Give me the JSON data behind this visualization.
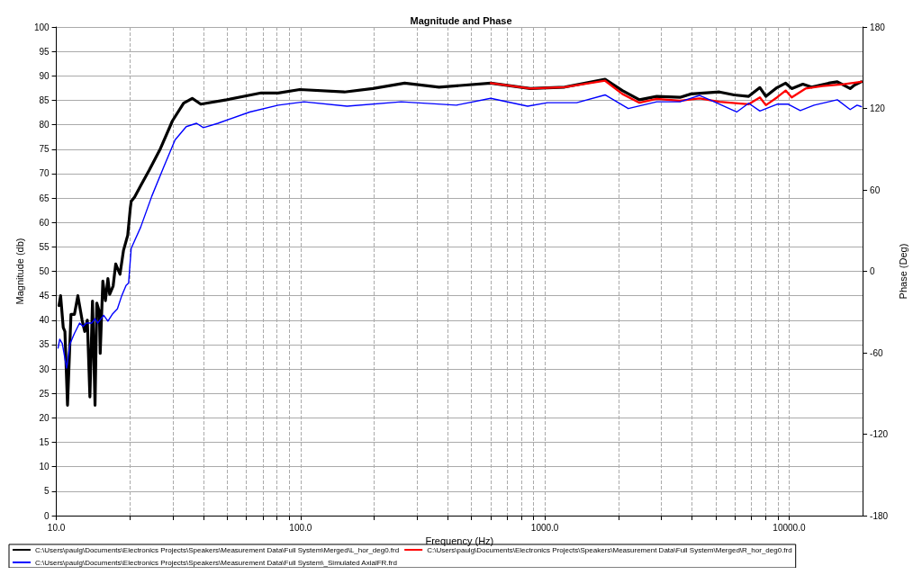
{
  "chart_data": {
    "type": "line",
    "title": "Magnitude and Phase",
    "xlabel": "Frequency (Hz)",
    "ylabel": "Magnitude (db)",
    "y2label": "Phase (Deg)",
    "log": "x",
    "grid": true,
    "legend": "bottom",
    "marker": "none",
    "line_style": "solid",
    "xlim": [
      10,
      20000
    ],
    "xticks": [
      {
        "value": 10,
        "label": "10.0"
      },
      {
        "value": 20,
        "label": null
      },
      {
        "value": 30,
        "label": null
      },
      {
        "value": 40,
        "label": null
      },
      {
        "value": 50,
        "label": null
      },
      {
        "value": 60,
        "label": null
      },
      {
        "value": 70,
        "label": null
      },
      {
        "value": 80,
        "label": null
      },
      {
        "value": 90,
        "label": null
      },
      {
        "value": 100,
        "label": "100.0"
      },
      {
        "value": 200,
        "label": null
      },
      {
        "value": 300,
        "label": null
      },
      {
        "value": 400,
        "label": null
      },
      {
        "value": 500,
        "label": null
      },
      {
        "value": 600,
        "label": null
      },
      {
        "value": 700,
        "label": null
      },
      {
        "value": 800,
        "label": null
      },
      {
        "value": 900,
        "label": null
      },
      {
        "value": 1000,
        "label": "1000.0"
      },
      {
        "value": 2000,
        "label": null
      },
      {
        "value": 3000,
        "label": null
      },
      {
        "value": 4000,
        "label": null
      },
      {
        "value": 5000,
        "label": null
      },
      {
        "value": 6000,
        "label": null
      },
      {
        "value": 7000,
        "label": null
      },
      {
        "value": 8000,
        "label": null
      },
      {
        "value": 9000,
        "label": null
      },
      {
        "value": 10000,
        "label": "10000.0"
      }
    ],
    "ylim": [
      0,
      100
    ],
    "yticks": [
      0,
      5,
      10,
      15,
      20,
      25,
      30,
      35,
      40,
      45,
      50,
      55,
      60,
      65,
      70,
      75,
      80,
      85,
      90,
      95,
      100
    ],
    "y2lim": [
      -180,
      180
    ],
    "y2ticks": [
      -180,
      -120,
      -60,
      0,
      60,
      120,
      180
    ],
    "series": [
      {
        "name": "C:\\Users\\paulg\\Documents\\Electronics Projects\\Speakers\\Measurement Data\\Full System\\Merged\\L_hor_deg0.frd",
        "color": "#000000",
        "x": [
          10.25,
          10.41,
          10.67,
          10.84,
          11.11,
          11.48,
          11.86,
          12.25,
          12.75,
          13.07,
          13.39,
          13.72,
          14.06,
          14.4,
          14.64,
          15.0,
          15.12,
          15.5,
          15.88,
          16.26,
          16.53,
          17.08,
          17.5,
          18.22,
          18.82,
          19.6,
          20.09,
          20.25,
          20.91,
          22.13,
          24.01,
          26.67,
          29.88,
          33.2,
          36.0,
          39.04,
          49.8,
          68.9,
          81.0,
          99.2,
          151.2,
          197.6,
          266.7,
          368.8,
          600.1,
          871.2,
          1205,
          1764,
          2075,
          2439,
          2870,
          3572,
          3968,
          5185,
          5953,
          6831,
          7592,
          8034,
          8926,
          9680,
          10246,
          11380,
          12350,
          14520,
          15750,
          17780,
          18520,
          19760
        ],
        "values": [
          43.0,
          45.0,
          38.5,
          37.7,
          22.6,
          41.2,
          41.2,
          45.0,
          40.0,
          37.7,
          40.0,
          24.3,
          43.9,
          22.6,
          43.5,
          41.7,
          33.2,
          48.0,
          44.0,
          48.5,
          45.3,
          47.0,
          51.5,
          49.4,
          54.2,
          57.4,
          63.0,
          64.3,
          65.2,
          67.5,
          70.7,
          75.1,
          80.8,
          84.4,
          85.4,
          84.2,
          85.1,
          86.5,
          86.5,
          87.2,
          86.7,
          87.4,
          88.5,
          87.7,
          88.5,
          87.4,
          87.7,
          89.3,
          87.0,
          85.1,
          85.8,
          85.6,
          86.3,
          86.7,
          86.1,
          85.8,
          87.6,
          85.8,
          87.6,
          88.5,
          87.4,
          88.3,
          87.7,
          88.5,
          88.8,
          87.4,
          88.1,
          88.8
        ]
      },
      {
        "name": "C:\\Users\\paulg\\Documents\\Electronics Projects\\Speakers\\Measurement Data\\Full System\\Merged\\R_hor_deg0.frd",
        "color": "#ff0000",
        "x": [
          600.1,
          871.2,
          1205,
          1764,
          2075,
          2439,
          2870,
          3572,
          4303,
          5185,
          6831,
          7592,
          8034,
          8926,
          9680,
          10246,
          11665,
          13720,
          16670,
          19760
        ],
        "values": [
          88.5,
          87.4,
          87.7,
          89.0,
          86.3,
          84.5,
          85.3,
          84.9,
          85.4,
          84.7,
          84.2,
          85.6,
          84.0,
          85.6,
          87.0,
          85.6,
          87.4,
          87.9,
          88.3,
          88.8
        ]
      },
      {
        "name": "C:\\Users\\paulg\\Documents\\Electronics Projects\\Speakers\\Measurement Data\\Full System\\_Simulated AxialFR.frd",
        "color": "#0000ff",
        "x": [
          10.16,
          10.33,
          10.58,
          11.02,
          11.38,
          11.86,
          12.45,
          12.86,
          13.28,
          13.94,
          14.4,
          14.76,
          15.62,
          16.26,
          16.94,
          17.78,
          18.52,
          19.29,
          19.76,
          20.25,
          22.13,
          24.6,
          27.55,
          30.62,
          34.02,
          37.49,
          40.0,
          45.9,
          61.9,
          81.0,
          103.3,
          155.0,
          258.2,
          433.9,
          600.1,
          850.3,
          1024,
          1350,
          1764,
          2196,
          2870,
          3572,
          4303,
          4938,
          6099,
          6831,
          7592,
          8926,
          9919,
          11110,
          12650,
          15750,
          17780,
          18970,
          19760
        ],
        "values": [
          34.3,
          36.1,
          35.2,
          30.2,
          35.2,
          37.3,
          39.4,
          38.7,
          39.4,
          39.4,
          40.3,
          39.4,
          41.0,
          39.8,
          41.2,
          42.3,
          45.0,
          47.1,
          47.6,
          54.7,
          59.0,
          65.4,
          71.4,
          76.9,
          79.6,
          80.3,
          79.4,
          80.3,
          82.6,
          84.0,
          84.7,
          83.8,
          84.7,
          84.0,
          85.4,
          83.8,
          84.5,
          84.5,
          86.1,
          83.3,
          84.7,
          84.7,
          86.0,
          84.7,
          82.6,
          84.4,
          82.8,
          84.2,
          84.2,
          82.9,
          84.0,
          85.1,
          83.1,
          84.0,
          83.7
        ]
      }
    ]
  }
}
